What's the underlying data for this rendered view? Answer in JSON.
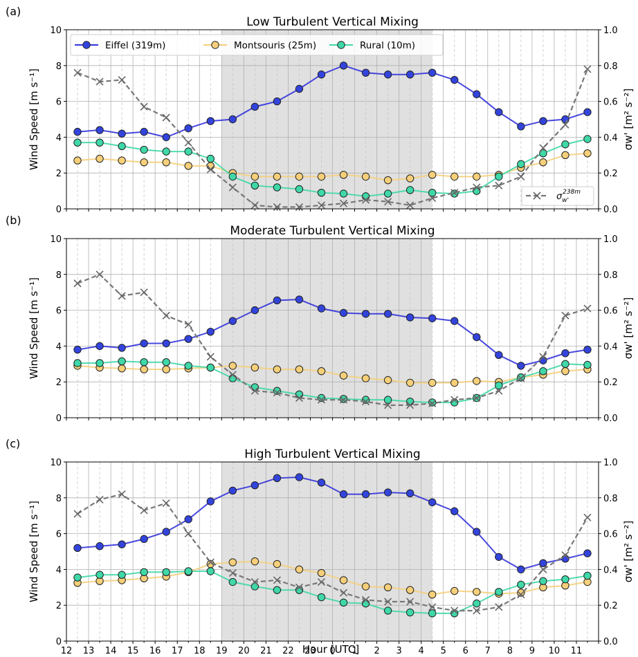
{
  "figure": {
    "xlabel": "Hour [UTC]",
    "colors": {
      "eiffel": "#3333dd",
      "montsouris": "#f5cf7a",
      "rural": "#3fd8a8",
      "sigma": "#777777",
      "shade": "#e0e0e0",
      "grid": "#b0b0b0"
    },
    "legend": {
      "eiffel": "Eiffel (319m)",
      "montsouris": "Montsouris (25m)",
      "rural": "Rural (10m)",
      "sigma_base": "σ",
      "sigma_sub": "w'",
      "sigma_sup": "238m"
    },
    "ylabel_left": "Wind Speed [m s⁻¹]",
    "ylabel_right": "σw' [m² s⁻²]"
  },
  "chart_data": [
    {
      "type": "line",
      "panel_label": "(a)",
      "title": "Low Turbulent Vertical Mixing",
      "x_tick_labels": [
        "12",
        "13",
        "14",
        "15",
        "16",
        "17",
        "18",
        "19",
        "20",
        "21",
        "22",
        "23",
        "0",
        "1",
        "2",
        "3",
        "4",
        "5",
        "6",
        "7",
        "8",
        "9",
        "10",
        "11"
      ],
      "x_range": [
        12,
        36
      ],
      "ylim_left": [
        0,
        10
      ],
      "ylim_right": [
        0,
        1.0
      ],
      "y_ticks_left": [
        "0",
        "2",
        "4",
        "6",
        "8",
        "10"
      ],
      "y_ticks_right": [
        "0.0",
        "0.2",
        "0.4",
        "0.6",
        "0.8",
        "1.0"
      ],
      "shaded_x_range": [
        19,
        28.5
      ],
      "legend_position": "upper-left",
      "sigma_legend_position": "lower-right",
      "x": [
        12.5,
        13.5,
        14.5,
        15.5,
        16.5,
        17.5,
        18.5,
        19.5,
        20.5,
        21.5,
        22.5,
        23.5,
        24.5,
        25.5,
        26.5,
        27.5,
        28.5,
        29.5,
        30.5,
        31.5,
        32.5,
        33.5,
        34.5,
        35.5
      ],
      "series": [
        {
          "name": "Eiffel (319m)",
          "axis": "left",
          "values": [
            4.3,
            4.4,
            4.2,
            4.3,
            4.0,
            4.5,
            4.9,
            5.0,
            5.7,
            6.0,
            6.7,
            7.5,
            8.0,
            7.6,
            7.5,
            7.5,
            7.6,
            7.2,
            6.4,
            5.4,
            4.6,
            4.9,
            5.0,
            5.4
          ]
        },
        {
          "name": "Montsouris (25m)",
          "axis": "left",
          "values": [
            2.7,
            2.8,
            2.7,
            2.6,
            2.6,
            2.4,
            2.4,
            2.0,
            1.8,
            1.8,
            1.8,
            1.8,
            1.9,
            1.8,
            1.6,
            1.7,
            1.9,
            1.8,
            1.8,
            1.9,
            2.3,
            2.6,
            3.0,
            3.1
          ]
        },
        {
          "name": "Rural (10m)",
          "axis": "left",
          "values": [
            3.7,
            3.7,
            3.5,
            3.3,
            3.2,
            3.2,
            2.8,
            1.8,
            1.3,
            1.2,
            1.1,
            0.9,
            0.85,
            0.7,
            0.85,
            1.05,
            0.9,
            0.85,
            1.0,
            1.8,
            2.5,
            3.1,
            3.6,
            3.9
          ]
        },
        {
          "name": "σw' 238m",
          "axis": "right",
          "values": [
            0.76,
            0.71,
            0.72,
            0.57,
            0.51,
            0.37,
            0.22,
            0.12,
            0.02,
            0.01,
            0.01,
            0.02,
            0.03,
            0.05,
            0.04,
            0.02,
            0.06,
            0.09,
            0.12,
            0.13,
            0.18,
            0.34,
            0.47,
            0.78
          ]
        }
      ]
    },
    {
      "type": "line",
      "panel_label": "(b)",
      "title": "Moderate Turbulent Vertical Mixing",
      "x_tick_labels": [
        "12",
        "13",
        "14",
        "15",
        "16",
        "17",
        "18",
        "19",
        "20",
        "21",
        "22",
        "23",
        "0",
        "1",
        "2",
        "3",
        "4",
        "5",
        "6",
        "7",
        "8",
        "9",
        "10",
        "11"
      ],
      "x_range": [
        12,
        36
      ],
      "ylim_left": [
        0,
        10
      ],
      "ylim_right": [
        0,
        1.0
      ],
      "y_ticks_left": [
        "0",
        "2",
        "4",
        "6",
        "8",
        "10"
      ],
      "y_ticks_right": [
        "0.0",
        "0.2",
        "0.4",
        "0.6",
        "0.8",
        "1.0"
      ],
      "shaded_x_range": [
        19,
        28.5
      ],
      "x": [
        12.5,
        13.5,
        14.5,
        15.5,
        16.5,
        17.5,
        18.5,
        19.5,
        20.5,
        21.5,
        22.5,
        23.5,
        24.5,
        25.5,
        26.5,
        27.5,
        28.5,
        29.5,
        30.5,
        31.5,
        32.5,
        33.5,
        34.5,
        35.5
      ],
      "series": [
        {
          "name": "Eiffel (319m)",
          "axis": "left",
          "values": [
            3.8,
            4.0,
            3.9,
            4.15,
            4.15,
            4.4,
            4.8,
            5.4,
            6.0,
            6.55,
            6.6,
            6.1,
            5.85,
            5.8,
            5.8,
            5.6,
            5.55,
            5.4,
            4.5,
            3.5,
            2.9,
            3.2,
            3.6,
            3.8
          ]
        },
        {
          "name": "Montsouris (25m)",
          "axis": "left",
          "values": [
            2.9,
            2.8,
            2.75,
            2.7,
            2.7,
            2.75,
            2.8,
            2.9,
            2.8,
            2.7,
            2.7,
            2.6,
            2.35,
            2.2,
            2.1,
            1.95,
            1.95,
            1.95,
            2.05,
            2.0,
            2.25,
            2.4,
            2.6,
            2.7
          ]
        },
        {
          "name": "Rural (10m)",
          "axis": "left",
          "values": [
            3.05,
            3.05,
            3.15,
            3.1,
            3.1,
            2.9,
            2.8,
            2.2,
            1.7,
            1.5,
            1.3,
            1.1,
            1.05,
            1.0,
            1.0,
            0.9,
            0.85,
            0.85,
            1.1,
            1.8,
            2.25,
            2.6,
            3.0,
            2.95
          ]
        },
        {
          "name": "σw' 238m",
          "axis": "right",
          "values": [
            0.75,
            0.8,
            0.68,
            0.7,
            0.57,
            0.52,
            0.34,
            0.24,
            0.15,
            0.14,
            0.11,
            0.1,
            0.1,
            0.09,
            0.07,
            0.07,
            0.08,
            0.1,
            0.11,
            0.15,
            0.22,
            0.34,
            0.57,
            0.61
          ]
        }
      ]
    },
    {
      "type": "line",
      "panel_label": "(c)",
      "title": "High Turbulent Vertical Mixing",
      "x_tick_labels": [
        "12",
        "13",
        "14",
        "15",
        "16",
        "17",
        "18",
        "19",
        "20",
        "21",
        "22",
        "23",
        "0",
        "1",
        "2",
        "3",
        "4",
        "5",
        "6",
        "7",
        "8",
        "9",
        "10",
        "11"
      ],
      "x_range": [
        12,
        36
      ],
      "ylim_left": [
        0,
        10
      ],
      "ylim_right": [
        0,
        1.0
      ],
      "y_ticks_left": [
        "0",
        "2",
        "4",
        "6",
        "8",
        "10"
      ],
      "y_ticks_right": [
        "0.0",
        "0.2",
        "0.4",
        "0.6",
        "0.8",
        "1.0"
      ],
      "shaded_x_range": [
        19,
        28.5
      ],
      "x": [
        12.5,
        13.5,
        14.5,
        15.5,
        16.5,
        17.5,
        18.5,
        19.5,
        20.5,
        21.5,
        22.5,
        23.5,
        24.5,
        25.5,
        26.5,
        27.5,
        28.5,
        29.5,
        30.5,
        31.5,
        32.5,
        33.5,
        34.5,
        35.5
      ],
      "series": [
        {
          "name": "Eiffel (319m)",
          "axis": "left",
          "values": [
            5.2,
            5.3,
            5.4,
            5.7,
            6.1,
            6.8,
            7.8,
            8.4,
            8.7,
            9.1,
            9.15,
            8.85,
            8.2,
            8.2,
            8.3,
            8.25,
            7.75,
            7.25,
            6.1,
            4.7,
            4.0,
            4.35,
            4.6,
            4.9
          ]
        },
        {
          "name": "Montsouris (25m)",
          "axis": "left",
          "values": [
            3.25,
            3.35,
            3.4,
            3.5,
            3.6,
            3.85,
            4.3,
            4.4,
            4.45,
            4.3,
            4.0,
            3.8,
            3.4,
            3.05,
            3.0,
            2.85,
            2.6,
            2.8,
            2.75,
            2.65,
            2.7,
            3.0,
            3.1,
            3.3
          ]
        },
        {
          "name": "Rural (10m)",
          "axis": "left",
          "values": [
            3.55,
            3.7,
            3.7,
            3.85,
            3.85,
            3.9,
            3.9,
            3.3,
            3.05,
            2.85,
            2.85,
            2.45,
            2.15,
            2.1,
            1.7,
            1.6,
            1.55,
            1.55,
            2.1,
            2.75,
            3.15,
            3.35,
            3.45,
            3.65
          ]
        },
        {
          "name": "σw' 238m",
          "axis": "right",
          "values": [
            0.71,
            0.79,
            0.82,
            0.73,
            0.77,
            0.6,
            0.44,
            0.38,
            0.33,
            0.34,
            0.3,
            0.33,
            0.27,
            0.23,
            0.22,
            0.22,
            0.19,
            0.17,
            0.17,
            0.19,
            0.26,
            0.4,
            0.48,
            0.69
          ]
        }
      ]
    }
  ]
}
